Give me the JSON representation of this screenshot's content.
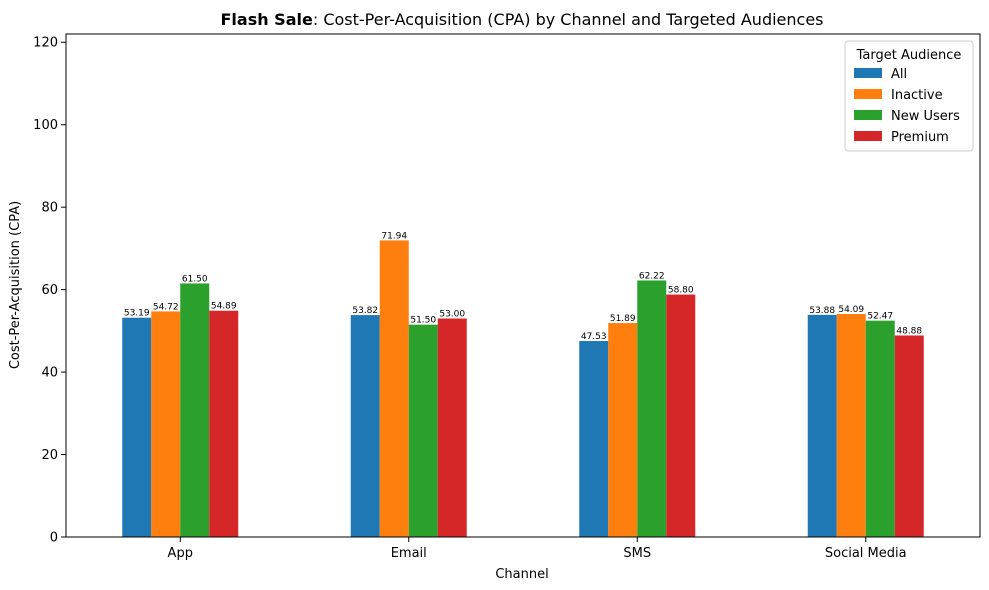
{
  "chart_data": {
    "type": "bar",
    "title_bold": "Flash Sale",
    "title_rest": ": Cost-Per-Acquisition (CPA) by Channel and Targeted Audiences",
    "xlabel": "Channel",
    "ylabel": "Cost-Per-Acquisition (CPA)",
    "categories": [
      "App",
      "Email",
      "SMS",
      "Social Media"
    ],
    "ylim": [
      0,
      122
    ],
    "yticks": [
      0,
      20,
      40,
      60,
      80,
      100,
      120
    ],
    "grid": false,
    "legend": {
      "title": "Target Audience",
      "placement": "top-right"
    },
    "series": [
      {
        "name": "All",
        "color": "#1f77b4",
        "values": [
          53.19,
          53.82,
          47.53,
          53.88
        ],
        "labels": [
          "53.19",
          "53.82",
          "47.53",
          "53.88"
        ]
      },
      {
        "name": "Inactive",
        "color": "#ff7f0e",
        "values": [
          54.72,
          71.94,
          51.89,
          54.09
        ],
        "labels": [
          "54.72",
          "71.94",
          "51.89",
          "54.09"
        ]
      },
      {
        "name": "New Users",
        "color": "#2ca02c",
        "values": [
          61.5,
          51.5,
          62.22,
          52.47
        ],
        "labels": [
          "61.50",
          "51.50",
          "62.22",
          "52.47"
        ]
      },
      {
        "name": "Premium",
        "color": "#d62728",
        "values": [
          54.89,
          53.0,
          58.8,
          48.88
        ],
        "labels": [
          "54.89",
          "53.00",
          "58.80",
          "48.88"
        ]
      }
    ]
  }
}
